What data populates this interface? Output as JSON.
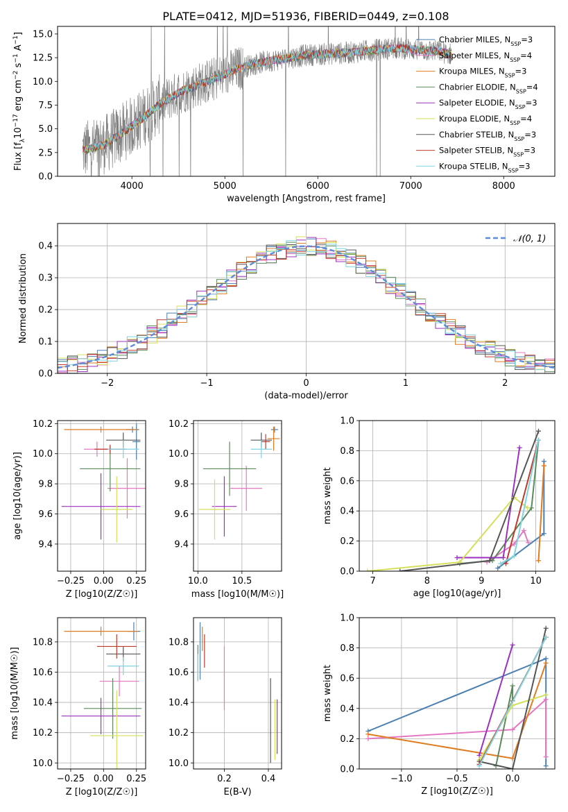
{
  "figure": {
    "title": "PLATE=0412, MJD=51936, FIBERID=0449, z=0.108"
  },
  "chart_data": [
    {
      "id": "spectrum",
      "type": "line",
      "xlabel": "wavelength [Angstrom, rest frame]",
      "ylabel": "Flux [f_λ 10^-17 erg cm^-2 s^-1 A^-1]",
      "xlim": [
        3200,
        8550
      ],
      "ylim": [
        0,
        15.8
      ],
      "xticks": [
        4000,
        5000,
        6000,
        7000,
        8000
      ],
      "yticks": [
        0.0,
        2.5,
        5.0,
        7.5,
        10.0,
        12.5,
        15.0
      ],
      "grid": false,
      "legend_position": "top-right",
      "data_continuum": [
        [
          3500,
          2.8
        ],
        [
          3700,
          3.3
        ],
        [
          3900,
          4.6
        ],
        [
          4100,
          6.0
        ],
        [
          4300,
          7.6
        ],
        [
          4500,
          8.8
        ],
        [
          4700,
          9.6
        ],
        [
          4900,
          10.3
        ],
        [
          5100,
          11.2
        ],
        [
          5300,
          11.8
        ],
        [
          5500,
          12.2
        ],
        [
          5700,
          12.5
        ],
        [
          5900,
          12.8
        ],
        [
          6100,
          12.9
        ],
        [
          6300,
          13.0
        ],
        [
          6500,
          13.2
        ],
        [
          6700,
          13.4
        ],
        [
          6900,
          13.5
        ],
        [
          7100,
          13.3
        ],
        [
          7300,
          13.2
        ],
        [
          7400,
          12.9
        ]
      ],
      "series": [
        {
          "name": "Chabrier MILES, N_SSP=3",
          "label_main": "Chabrier MILES, N",
          "label_sub": "SSP",
          "label_tail": "=3",
          "color": "#4a7fb0"
        },
        {
          "name": "Salpeter MILES, N_SSP=4",
          "label_main": "Salpeter MILES, N",
          "label_sub": "SSP",
          "label_tail": "=4",
          "color": "#e377c2"
        },
        {
          "name": "Kroupa MILES, N_SSP=3",
          "label_main": "Kroupa MILES, N",
          "label_sub": "SSP",
          "label_tail": "=3",
          "color": "#e07b20"
        },
        {
          "name": "Chabrier ELODIE, N_SSP=4",
          "label_main": "Chabrier ELODIE, N",
          "label_sub": "SSP",
          "label_tail": "=4",
          "color": "#5a8a5a"
        },
        {
          "name": "Salpeter ELODIE, N_SSP=3",
          "label_main": "Salpeter ELODIE, N",
          "label_sub": "SSP",
          "label_tail": "=3",
          "color": "#9b30c0"
        },
        {
          "name": "Kroupa ELODIE, N_SSP=4",
          "label_main": "Kroupa ELODIE, N",
          "label_sub": "SSP",
          "label_tail": "=4",
          "color": "#d4e05a"
        },
        {
          "name": "Chabrier STELIB, N_SSP=3",
          "label_main": "Chabrier STELIB, N",
          "label_sub": "SSP",
          "label_tail": "=3",
          "color": "#555555"
        },
        {
          "name": "Salpeter STELIB, N_SSP=3",
          "label_main": "Salpeter STELIB, N",
          "label_sub": "SSP",
          "label_tail": "=3",
          "color": "#c0392b"
        },
        {
          "name": "Kroupa STELIB, N_SSP=3",
          "label_main": "Kroupa STELIB, N",
          "label_sub": "SSP",
          "label_tail": "=3",
          "color": "#7fd3e0"
        }
      ]
    },
    {
      "id": "residuals",
      "type": "line",
      "xlabel": "(data-model)/error",
      "ylabel": "Normed distribution",
      "xlim": [
        -2.5,
        2.5
      ],
      "ylim": [
        0,
        0.47
      ],
      "xticks": [
        -2,
        -1,
        0,
        1,
        2
      ],
      "yticks": [
        0.0,
        0.1,
        0.2,
        0.3,
        0.4
      ],
      "grid": true,
      "legend_position": "top-right",
      "reference_curve": {
        "name": "𝒩(0, 1)",
        "mean": 0,
        "sigma": 1,
        "color": "#5b8bd9"
      },
      "histogram_bin_width": 0.1,
      "histogram_colors": [
        "#4a7fb0",
        "#e377c2",
        "#e07b20",
        "#5a8a5a",
        "#9b30c0",
        "#d4e05a",
        "#555555",
        "#c0392b",
        "#7fd3e0"
      ]
    },
    {
      "id": "age_vs_Z",
      "type": "scatter",
      "xlabel": "Z [log10(Z/Z☉)]",
      "ylabel": "age  [log10(age/yr)]",
      "xlim": [
        -0.35,
        0.32
      ],
      "ylim": [
        9.22,
        10.22
      ],
      "xticks": [
        -0.25,
        0.0,
        0.25
      ],
      "yticks": [
        9.4,
        9.6,
        9.8,
        10.0,
        10.2
      ],
      "grid": true,
      "points": [
        {
          "x": 0.25,
          "y": 10.08,
          "xerr": 0.03,
          "yerr": 0.12,
          "color": "#4a7fb0"
        },
        {
          "x": 0.22,
          "y": 10.16,
          "xerr": 0.05,
          "yerr": 0.02,
          "color": "#4a7fb0"
        },
        {
          "x": 0.18,
          "y": 9.77,
          "xerr": 0.15,
          "yerr": 0.2,
          "color": "#e377c2"
        },
        {
          "x": -0.05,
          "y": 10.03,
          "xerr": 0.1,
          "yerr": 0.05,
          "color": "#e377c2"
        },
        {
          "x": -0.02,
          "y": 10.16,
          "xerr": 0.28,
          "yerr": 0.02,
          "color": "#e07b20"
        },
        {
          "x": 0.05,
          "y": 9.9,
          "xerr": 0.23,
          "yerr": 0.15,
          "color": "#5a8a5a"
        },
        {
          "x": -0.02,
          "y": 9.65,
          "xerr": 0.3,
          "yerr": 0.22,
          "color": "#9b30c0"
        },
        {
          "x": 0.1,
          "y": 9.63,
          "xerr": 0.12,
          "yerr": 0.22,
          "color": "#d4e05a"
        },
        {
          "x": 0.15,
          "y": 10.09,
          "xerr": 0.13,
          "yerr": 0.05,
          "color": "#555555"
        },
        {
          "x": 0.05,
          "y": 10.03,
          "xerr": 0.12,
          "yerr": 0.03,
          "color": "#c0392b"
        },
        {
          "x": 0.15,
          "y": 10.03,
          "xerr": 0.12,
          "yerr": 0.06,
          "color": "#7fd3e0"
        }
      ]
    },
    {
      "id": "age_vs_mass",
      "type": "scatter",
      "xlabel": "mass [log10(M/M☉)]",
      "ylabel": "",
      "xlim": [
        9.95,
        10.95
      ],
      "ylim": [
        9.22,
        10.22
      ],
      "xticks": [
        10.0,
        10.5
      ],
      "yticks": [
        9.4,
        9.6,
        9.8,
        10.0,
        10.2
      ],
      "grid": true,
      "points": [
        {
          "x": 10.87,
          "y": 10.16,
          "xerr": 0.04,
          "yerr": 0.02,
          "color": "#4a7fb0"
        },
        {
          "x": 10.55,
          "y": 9.77,
          "xerr": 0.18,
          "yerr": 0.15,
          "color": "#e377c2"
        },
        {
          "x": 10.86,
          "y": 10.1,
          "xerr": 0.07,
          "yerr": 0.08,
          "color": "#e07b20"
        },
        {
          "x": 10.36,
          "y": 9.9,
          "xerr": 0.3,
          "yerr": 0.18,
          "color": "#5a8a5a"
        },
        {
          "x": 10.3,
          "y": 9.65,
          "xerr": 0.14,
          "yerr": 0.2,
          "color": "#9b30c0"
        },
        {
          "x": 10.19,
          "y": 9.63,
          "xerr": 0.18,
          "yerr": 0.2,
          "color": "#d4e05a"
        },
        {
          "x": 10.72,
          "y": 10.09,
          "xerr": 0.12,
          "yerr": 0.05,
          "color": "#555555"
        },
        {
          "x": 10.77,
          "y": 10.08,
          "xerr": 0.05,
          "yerr": 0.05,
          "color": "#c0392b"
        },
        {
          "x": 10.72,
          "y": 10.03,
          "xerr": 0.12,
          "yerr": 0.06,
          "color": "#7fd3e0"
        }
      ]
    },
    {
      "id": "weight_vs_age",
      "type": "line",
      "xlabel": "age  [log10(age/yr)]",
      "ylabel": "mass weight",
      "xlim": [
        6.75,
        10.35
      ],
      "ylim": [
        0,
        1.0
      ],
      "xticks": [
        7,
        8,
        9,
        10
      ],
      "yticks": [
        0.0,
        0.2,
        0.4,
        0.6,
        0.8,
        1.0
      ],
      "grid": true,
      "series": [
        {
          "color": "#4a7fb0",
          "points": [
            [
              9.3,
              0.02
            ],
            [
              10.15,
              0.25
            ],
            [
              10.15,
              0.73
            ]
          ]
        },
        {
          "color": "#e377c2",
          "points": [
            [
              9.1,
              0.06
            ],
            [
              9.6,
              0.18
            ],
            [
              9.78,
              0.27
            ],
            [
              9.86,
              0.19
            ]
          ]
        },
        {
          "color": "#e07b20",
          "points": [
            [
              10.05,
              0.07
            ],
            [
              10.15,
              0.7
            ],
            [
              10.15,
              0.7
            ]
          ]
        },
        {
          "color": "#5a8a5a",
          "points": [
            [
              8.6,
              0.05
            ],
            [
              9.2,
              0.07
            ],
            [
              9.92,
              0.42
            ],
            [
              10.05,
              0.87
            ]
          ]
        },
        {
          "color": "#9b30c0",
          "points": [
            [
              8.55,
              0.09
            ],
            [
              9.4,
              0.09
            ],
            [
              9.7,
              0.82
            ]
          ]
        },
        {
          "color": "#d4e05a",
          "points": [
            [
              6.9,
              0.0
            ],
            [
              8.6,
              0.06
            ],
            [
              9.6,
              0.49
            ],
            [
              9.85,
              0.42
            ]
          ]
        },
        {
          "color": "#555555",
          "points": [
            [
              7.5,
              0.0
            ],
            [
              9.15,
              0.07
            ],
            [
              10.05,
              0.93
            ]
          ]
        },
        {
          "color": "#c0392b",
          "points": [
            [
              9.45,
              0.05
            ],
            [
              10.05,
              0.87
            ]
          ]
        },
        {
          "color": "#7fd3e0",
          "points": [
            [
              9.35,
              0.05
            ],
            [
              9.6,
              0.1
            ],
            [
              10.05,
              0.87
            ]
          ]
        }
      ]
    },
    {
      "id": "mass_vs_Z",
      "type": "scatter",
      "xlabel": "Z [log10(Z/Z☉)]",
      "ylabel": "mass [log10(M/M☉)]",
      "xlim": [
        -0.35,
        0.32
      ],
      "ylim": [
        9.96,
        10.96
      ],
      "xticks": [
        -0.25,
        0.0,
        0.25
      ],
      "yticks": [
        10.0,
        10.2,
        10.4,
        10.6,
        10.8
      ],
      "grid": true,
      "points": [
        {
          "x": 0.23,
          "y": 10.87,
          "xerr": 0.05,
          "yerr": 0.06,
          "color": "#4a7fb0"
        },
        {
          "x": 0.12,
          "y": 10.54,
          "xerr": 0.15,
          "yerr": 0.1,
          "color": "#e377c2"
        },
        {
          "x": -0.02,
          "y": 10.87,
          "xerr": 0.28,
          "yerr": 0.03,
          "color": "#e07b20"
        },
        {
          "x": 0.07,
          "y": 10.36,
          "xerr": 0.22,
          "yerr": 0.2,
          "color": "#5a8a5a"
        },
        {
          "x": -0.02,
          "y": 10.31,
          "xerr": 0.3,
          "yerr": 0.12,
          "color": "#9b30c0"
        },
        {
          "x": 0.1,
          "y": 10.18,
          "xerr": 0.2,
          "yerr": 0.3,
          "color": "#d4e05a"
        },
        {
          "x": 0.15,
          "y": 10.72,
          "xerr": 0.13,
          "yerr": 0.05,
          "color": "#555555"
        },
        {
          "x": 0.1,
          "y": 10.77,
          "xerr": 0.15,
          "yerr": 0.08,
          "color": "#c0392b"
        },
        {
          "x": 0.15,
          "y": 10.64,
          "xerr": 0.12,
          "yerr": 0.06,
          "color": "#7fd3e0"
        }
      ]
    },
    {
      "id": "mass_vs_ebv",
      "type": "scatter",
      "xlabel": "E(B-V)",
      "ylabel": "",
      "xlim": [
        0.06,
        0.46
      ],
      "ylim": [
        9.96,
        10.96
      ],
      "xticks": [
        0.2,
        0.4
      ],
      "yticks": [
        10.0,
        10.2,
        10.4,
        10.6,
        10.8
      ],
      "grid": true,
      "points": [
        {
          "x": 0.09,
          "y": 10.74,
          "xerr": 0,
          "yerr": 0.19,
          "color": "#4a7fb0"
        },
        {
          "x": 0.2,
          "y": 10.56,
          "xerr": 0,
          "yerr": 0.21,
          "color": "#e377c2"
        },
        {
          "x": 0.1,
          "y": 10.82,
          "xerr": 0,
          "yerr": 0.08,
          "color": "#e07b20"
        },
        {
          "x": 0.08,
          "y": 10.66,
          "xerr": 0,
          "yerr": 0.12,
          "color": "#5a8a5a"
        },
        {
          "x": 0.44,
          "y": 10.24,
          "xerr": 0,
          "yerr": 0.18,
          "color": "#9b30c0"
        },
        {
          "x": 0.43,
          "y": 10.22,
          "xerr": 0,
          "yerr": 0.2,
          "color": "#d4e05a"
        },
        {
          "x": 0.41,
          "y": 10.28,
          "xerr": 0,
          "yerr": 0.28,
          "color": "#555555"
        },
        {
          "x": 0.11,
          "y": 10.74,
          "xerr": 0,
          "yerr": 0.11,
          "color": "#c0392b"
        },
        {
          "x": 0.08,
          "y": 10.63,
          "xerr": 0,
          "yerr": 0.09,
          "color": "#7fd3e0"
        }
      ]
    },
    {
      "id": "weight_vs_Z",
      "type": "line",
      "xlabel": "Z [log10(Z/Z☉)]",
      "ylabel": "mass weight",
      "xlim": [
        -1.38,
        0.38
      ],
      "ylim": [
        0,
        1.0
      ],
      "xticks": [
        -1.0,
        -0.5,
        0.0
      ],
      "yticks": [
        0.0,
        0.2,
        0.4,
        0.6,
        0.8,
        1.0
      ],
      "grid": true,
      "series": [
        {
          "color": "#4a7fb0",
          "points": [
            [
              -1.3,
              0.25
            ],
            [
              0.3,
              0.73
            ],
            [
              0.3,
              0.02
            ]
          ]
        },
        {
          "color": "#e377c2",
          "points": [
            [
              -1.3,
              0.2
            ],
            [
              0.0,
              0.26
            ],
            [
              0.3,
              0.46
            ],
            [
              0.3,
              0.08
            ]
          ]
        },
        {
          "color": "#e07b20",
          "points": [
            [
              -1.3,
              0.23
            ],
            [
              0.0,
              0.07
            ],
            [
              0.3,
              0.7
            ]
          ]
        },
        {
          "color": "#5a8a5a",
          "points": [
            [
              -0.15,
              0.02
            ],
            [
              0.0,
              0.55
            ],
            [
              0.0,
              0.45
            ],
            [
              0.3,
              0.87
            ]
          ]
        },
        {
          "color": "#9b30c0",
          "points": [
            [
              -0.3,
              0.09
            ],
            [
              0.0,
              0.82
            ]
          ]
        },
        {
          "color": "#d4e05a",
          "points": [
            [
              -0.3,
              0.06
            ],
            [
              0.0,
              0.42
            ],
            [
              0.3,
              0.49
            ]
          ]
        },
        {
          "color": "#555555",
          "points": [
            [
              -0.3,
              0.05
            ],
            [
              0.0,
              0.0
            ],
            [
              0.3,
              0.93
            ]
          ]
        },
        {
          "color": "#c0392b",
          "points": [
            [
              -0.3,
              0.03
            ],
            [
              0.3,
              0.87
            ]
          ]
        },
        {
          "color": "#7fd3e0",
          "points": [
            [
              -0.3,
              0.02
            ],
            [
              0.3,
              0.87
            ]
          ]
        }
      ]
    }
  ]
}
